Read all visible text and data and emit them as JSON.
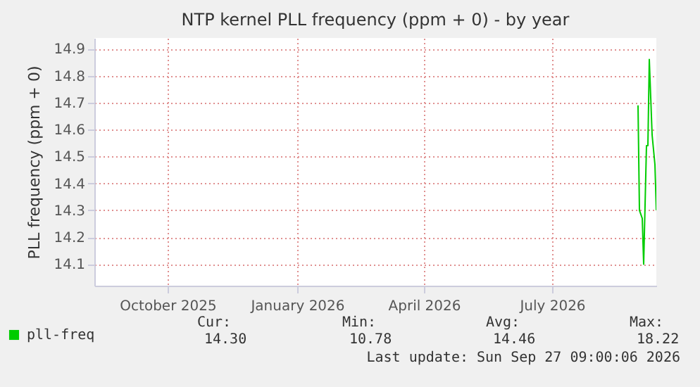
{
  "chart_data": {
    "type": "line",
    "title": "NTP kernel PLL frequency (ppm + 0) - by year",
    "ylabel": "PLL frequency (ppm + 0)",
    "x": [
      "2026-09-14",
      "2026-09-15",
      "2026-09-17",
      "2026-09-18",
      "2026-09-20",
      "2026-09-21",
      "2026-09-22",
      "2026-09-24",
      "2026-09-26",
      "2026-09-27"
    ],
    "series": [
      {
        "name": "pll-freq",
        "color": "#00cc00",
        "values": [
          14.69,
          14.3,
          14.27,
          14.1,
          14.54,
          14.54,
          14.86,
          14.58,
          14.47,
          14.3
        ]
      }
    ],
    "xlim": [
      "2025-08-24",
      "2026-09-27"
    ],
    "xticks": [
      {
        "value": "2025-10-15",
        "label": "October 2025"
      },
      {
        "value": "2026-01-15",
        "label": "January 2026"
      },
      {
        "value": "2026-04-15",
        "label": "April 2026"
      },
      {
        "value": "2026-07-15",
        "label": "July 2026"
      }
    ],
    "ylim": [
      14.02,
      14.94
    ],
    "yticks": [
      14.1,
      14.2,
      14.3,
      14.4,
      14.5,
      14.6,
      14.7,
      14.8,
      14.9
    ],
    "grid": true,
    "legend": "bottom left",
    "annotations": [
      "Cur:",
      "14.30",
      "Min:",
      "10.78",
      "Avg:",
      "14.46",
      "Max:",
      "18.22",
      "Last update: Sun Sep 27 09:00:06 2026"
    ]
  }
}
